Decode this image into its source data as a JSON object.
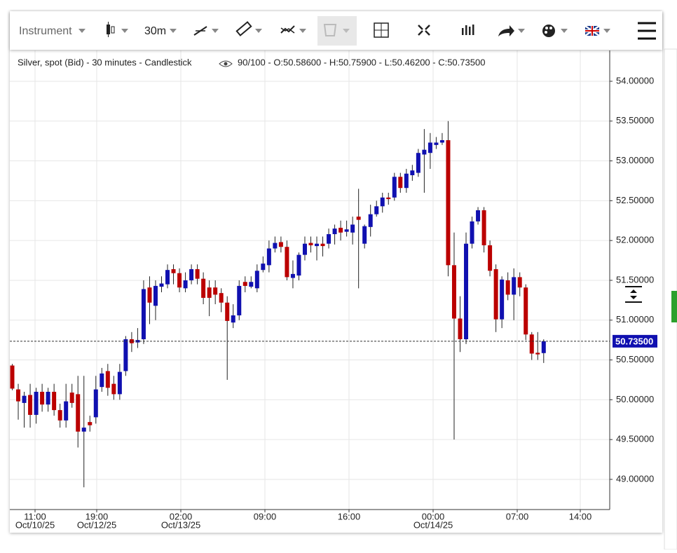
{
  "toolbar": {
    "instrument": "Instrument",
    "interval": "30m"
  },
  "chart_data": {
    "type": "candlestick",
    "title": "Silver, spot (Bid) - 30 minutes - Candlestick",
    "subtitle": "90/100 - O:50.58600 - H:50.75900 - L:50.46200 - C:50.73500",
    "up_color": "#1010b0",
    "down_color": "#bb0000",
    "open": [
      50.43,
      50.13,
      49.96,
      50.06,
      49.81,
      50.1,
      49.94,
      50.1,
      49.87,
      49.74,
      50.09,
      50.07,
      49.6,
      49.72,
      49.78,
      50.16,
      50.36,
      50.2,
      50.07,
      50.36,
      50.76,
      50.72,
      50.76,
      51.41,
      51.18,
      51.42,
      51.45,
      51.64,
      51.59,
      51.4,
      51.5,
      51.64,
      51.52,
      51.41,
      51.41,
      51.34,
      51.22,
      50.97,
      51.06,
      51.48,
      51.42,
      51.4,
      51.63,
      51.69,
      51.9,
      51.98,
      51.92,
      51.53,
      51.56,
      51.82,
      51.97,
      51.93,
      51.96,
      51.96,
      52.08,
      52.16,
      52.11,
      52.1,
      52.3,
      51.96,
      52.17,
      52.33,
      52.43,
      52.54,
      52.54,
      52.8,
      52.66,
      52.82,
      52.85,
      53.08,
      53.1,
      53.2,
      53.23,
      53.26,
      51.69,
      51.02,
      50.76,
      51.96,
      52.24,
      52.38,
      51.94,
      51.64,
      51.01,
      51.5,
      51.32,
      51.54,
      51.41,
      50.82,
      50.59,
      50.586
    ],
    "high": [
      50.45,
      50.2,
      50.1,
      50.2,
      50.15,
      50.2,
      50.15,
      50.2,
      49.95,
      50.2,
      50.2,
      50.3,
      50.3,
      49.8,
      50.3,
      50.4,
      50.45,
      50.3,
      50.45,
      50.8,
      50.85,
      50.9,
      51.5,
      51.55,
      51.5,
      51.55,
      51.7,
      51.7,
      51.65,
      51.6,
      51.7,
      51.7,
      51.6,
      51.5,
      51.5,
      51.4,
      51.3,
      51.2,
      51.5,
      51.55,
      51.55,
      51.7,
      51.8,
      52.0,
      52.05,
      52.05,
      52.0,
      51.75,
      51.85,
      52.05,
      52.05,
      52.05,
      52.05,
      52.15,
      52.2,
      52.25,
      52.25,
      52.3,
      52.65,
      52.2,
      52.45,
      52.5,
      52.6,
      52.6,
      52.85,
      52.85,
      52.9,
      52.95,
      53.15,
      53.4,
      53.35,
      53.3,
      53.35,
      53.5,
      52.1,
      51.3,
      52.1,
      52.3,
      52.42,
      52.42,
      52.0,
      51.7,
      51.55,
      51.6,
      51.65,
      51.6,
      51.45,
      50.85,
      50.85,
      50.759
    ],
    "low": [
      50.12,
      49.75,
      49.65,
      49.65,
      49.7,
      49.85,
      49.85,
      49.8,
      49.65,
      49.65,
      49.9,
      49.4,
      48.9,
      49.6,
      49.7,
      50.1,
      50.05,
      50.0,
      50.0,
      50.3,
      50.6,
      50.65,
      50.7,
      50.95,
      51.0,
      51.35,
      51.4,
      51.45,
      51.35,
      51.35,
      51.45,
      51.45,
      51.2,
      51.05,
      51.2,
      51.1,
      50.25,
      50.9,
      51.0,
      51.35,
      51.4,
      51.35,
      51.6,
      51.6,
      51.85,
      51.85,
      51.5,
      51.4,
      51.5,
      51.75,
      51.85,
      51.75,
      51.8,
      51.9,
      51.95,
      52.0,
      52.05,
      51.95,
      51.4,
      51.9,
      52.05,
      52.3,
      52.35,
      52.45,
      52.5,
      52.6,
      52.6,
      52.75,
      52.8,
      52.6,
      52.9,
      53.15,
      53.2,
      51.55,
      49.5,
      50.6,
      50.7,
      51.9,
      52.2,
      51.85,
      51.55,
      50.85,
      50.9,
      51.25,
      51.0,
      51.3,
      50.75,
      50.5,
      50.5,
      50.462
    ],
    "close": [
      50.14,
      49.98,
      50.05,
      49.81,
      50.1,
      49.94,
      50.1,
      49.87,
      49.74,
      49.98,
      49.96,
      49.6,
      49.65,
      49.68,
      50.13,
      50.33,
      50.15,
      50.07,
      50.35,
      50.76,
      50.71,
      50.75,
      51.39,
      51.22,
      51.43,
      51.46,
      51.63,
      51.59,
      51.41,
      51.5,
      51.64,
      51.52,
      51.28,
      51.28,
      51.32,
      51.22,
      50.99,
      51.06,
      51.43,
      51.43,
      51.48,
      51.62,
      51.71,
      51.9,
      51.97,
      51.92,
      51.54,
      51.58,
      51.82,
      51.96,
      51.94,
      51.96,
      51.93,
      52.08,
      52.15,
      52.1,
      52.14,
      52.2,
      52.26,
      52.18,
      52.33,
      52.43,
      52.54,
      52.52,
      52.8,
      52.66,
      52.84,
      52.88,
      53.1,
      53.14,
      53.23,
      53.23,
      53.26,
      51.69,
      51.02,
      50.76,
      51.96,
      52.24,
      52.38,
      51.94,
      51.62,
      51.01,
      51.51,
      51.32,
      51.54,
      51.41,
      50.82,
      50.58,
      50.57,
      50.735
    ],
    "last_price": {
      "value": 50.735,
      "label": "50.73500"
    },
    "ylim": [
      48.621,
      54.387
    ],
    "yticks": [
      {
        "value": 49,
        "label": "49.00000"
      },
      {
        "value": 49.5,
        "label": "49.50000"
      },
      {
        "value": 50,
        "label": "50.00000"
      },
      {
        "value": 50.5,
        "label": "50.50000"
      },
      {
        "value": 51,
        "label": "51.00000"
      },
      {
        "value": 51.5,
        "label": "51.50000"
      },
      {
        "value": 52,
        "label": "52.00000"
      },
      {
        "value": 52.5,
        "label": "52.50000"
      },
      {
        "value": 53,
        "label": "53.00000"
      },
      {
        "value": 53.5,
        "label": "53.50000"
      },
      {
        "value": 54,
        "label": "54.00000"
      }
    ],
    "xticks": [
      {
        "time": "11:00",
        "date": "Oct/10/25"
      },
      {
        "time": "19:00",
        "date": "Oct/12/25"
      },
      {
        "time": "02:00",
        "date": "Oct/13/25"
      },
      {
        "time": "09:00"
      },
      {
        "time": "16:00"
      },
      {
        "time": "00:00",
        "date": "Oct/14/25"
      },
      {
        "time": "07:00"
      },
      {
        "time": "14:00"
      }
    ],
    "grid": true
  }
}
